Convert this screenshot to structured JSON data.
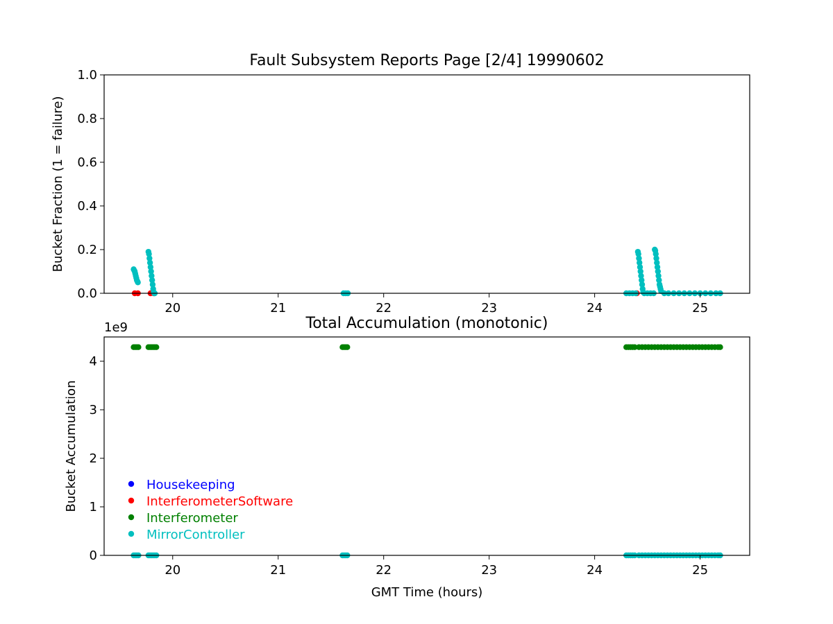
{
  "chart_data": [
    {
      "type": "scatter",
      "title": "Fault Subsystem Reports Page [2/4] 19990602",
      "xlabel": "",
      "ylabel": "Bucket Fraction (1 = failure)",
      "xlim": [
        19.35,
        25.47
      ],
      "ylim": [
        0.0,
        1.0
      ],
      "xticks": [
        "20",
        "21",
        "22",
        "23",
        "24",
        "25"
      ],
      "yticks": [
        "0.0",
        "0.2",
        "0.4",
        "0.6",
        "0.8",
        "1.0"
      ],
      "grid": false,
      "series": [
        {
          "name": "InterferometerSoftware",
          "color": "#ff0000",
          "x": [
            19.64,
            19.67,
            19.79,
            19.82,
            24.4
          ],
          "y": [
            0.0,
            0.0,
            0.0,
            0.0,
            0.0
          ]
        },
        {
          "name": "MirrorController",
          "color": "#00bfbf",
          "x": [
            19.63,
            19.635,
            19.64,
            19.645,
            19.65,
            19.655,
            19.66,
            19.665,
            19.67,
            19.77,
            19.775,
            19.78,
            19.785,
            19.79,
            19.795,
            19.8,
            19.805,
            19.81,
            19.815,
            19.82,
            19.825,
            19.83,
            21.62,
            21.64,
            21.66,
            24.3,
            24.33,
            24.36,
            24.39,
            24.41,
            24.415,
            24.42,
            24.425,
            24.43,
            24.435,
            24.44,
            24.445,
            24.45,
            24.455,
            24.46,
            24.47,
            24.5,
            24.53,
            24.56,
            24.57,
            24.575,
            24.58,
            24.585,
            24.59,
            24.595,
            24.6,
            24.605,
            24.61,
            24.615,
            24.62,
            24.625,
            24.63,
            24.66,
            24.7,
            24.75,
            24.8,
            24.85,
            24.9,
            24.95,
            25.0,
            25.05,
            25.1,
            25.15,
            25.19
          ],
          "y": [
            0.11,
            0.105,
            0.1,
            0.09,
            0.08,
            0.07,
            0.06,
            0.055,
            0.05,
            0.19,
            0.18,
            0.16,
            0.14,
            0.12,
            0.1,
            0.08,
            0.06,
            0.04,
            0.02,
            0.005,
            0.0,
            0.0,
            0.0,
            0.0,
            0.0,
            0.0,
            0.0,
            0.0,
            0.0,
            0.19,
            0.18,
            0.16,
            0.14,
            0.12,
            0.1,
            0.08,
            0.06,
            0.04,
            0.02,
            0.005,
            0.0,
            0.0,
            0.0,
            0.0,
            0.2,
            0.195,
            0.18,
            0.16,
            0.14,
            0.12,
            0.1,
            0.08,
            0.06,
            0.04,
            0.03,
            0.02,
            0.01,
            0.0,
            0.0,
            0.0,
            0.0,
            0.0,
            0.0,
            0.0,
            0.0,
            0.0,
            0.0,
            0.0,
            0.0
          ]
        }
      ]
    },
    {
      "type": "scatter",
      "title": "Total Accumulation (monotonic)",
      "xlabel": "GMT Time (hours)",
      "ylabel": "Bucket Accumulation",
      "y_offset_label": "1e9",
      "xlim": [
        19.35,
        25.47
      ],
      "ylim": [
        0,
        4.5
      ],
      "xticks": [
        "20",
        "21",
        "22",
        "23",
        "24",
        "25"
      ],
      "yticks": [
        "0",
        "1",
        "2",
        "3",
        "4"
      ],
      "grid": false,
      "legend_position": "lower-left",
      "legend": [
        {
          "name": "Housekeeping",
          "color": "#0000ff"
        },
        {
          "name": "InterferometerSoftware",
          "color": "#ff0000"
        },
        {
          "name": "Interferometer",
          "color": "#008000"
        },
        {
          "name": "MirrorController",
          "color": "#00bfbf"
        }
      ],
      "series": [
        {
          "name": "Interferometer",
          "color": "#008000",
          "x": [
            19.63,
            19.645,
            19.66,
            19.675,
            19.77,
            19.785,
            19.8,
            19.815,
            19.83,
            19.845,
            21.61,
            21.625,
            21.64,
            21.655,
            24.3,
            24.32,
            24.34,
            24.36,
            24.38,
            24.42,
            24.45,
            24.48,
            24.51,
            24.54,
            24.57,
            24.6,
            24.63,
            24.66,
            24.69,
            24.72,
            24.75,
            24.78,
            24.81,
            24.84,
            24.87,
            24.9,
            24.93,
            24.96,
            24.99,
            25.02,
            25.05,
            25.08,
            25.11,
            25.14,
            25.17,
            25.19
          ],
          "y": [
            4.29,
            4.29,
            4.29,
            4.29,
            4.29,
            4.29,
            4.29,
            4.29,
            4.29,
            4.29,
            4.29,
            4.29,
            4.29,
            4.29,
            4.29,
            4.29,
            4.29,
            4.29,
            4.29,
            4.29,
            4.29,
            4.29,
            4.29,
            4.29,
            4.29,
            4.29,
            4.29,
            4.29,
            4.29,
            4.29,
            4.29,
            4.29,
            4.29,
            4.29,
            4.29,
            4.29,
            4.29,
            4.29,
            4.29,
            4.29,
            4.29,
            4.29,
            4.29,
            4.29,
            4.29,
            4.29
          ]
        },
        {
          "name": "MirrorController",
          "color": "#00bfbf",
          "x": [
            19.63,
            19.645,
            19.66,
            19.675,
            19.77,
            19.785,
            19.8,
            19.815,
            19.83,
            19.845,
            21.61,
            21.625,
            21.64,
            21.655,
            24.3,
            24.32,
            24.34,
            24.36,
            24.38,
            24.42,
            24.45,
            24.48,
            24.51,
            24.54,
            24.57,
            24.6,
            24.63,
            24.66,
            24.69,
            24.72,
            24.75,
            24.78,
            24.81,
            24.84,
            24.87,
            24.9,
            24.93,
            24.96,
            24.99,
            25.02,
            25.05,
            25.08,
            25.11,
            25.14,
            25.17,
            25.19
          ],
          "y": [
            0,
            0,
            0,
            0,
            0,
            0,
            0,
            0,
            0,
            0,
            0,
            0,
            0,
            0,
            0,
            0,
            0,
            0,
            0,
            0,
            0,
            0,
            0,
            0,
            0,
            0,
            0,
            0,
            0,
            0,
            0,
            0,
            0,
            0,
            0,
            0,
            0,
            0,
            0,
            0,
            0,
            0,
            0,
            0,
            0,
            0
          ]
        }
      ]
    }
  ]
}
